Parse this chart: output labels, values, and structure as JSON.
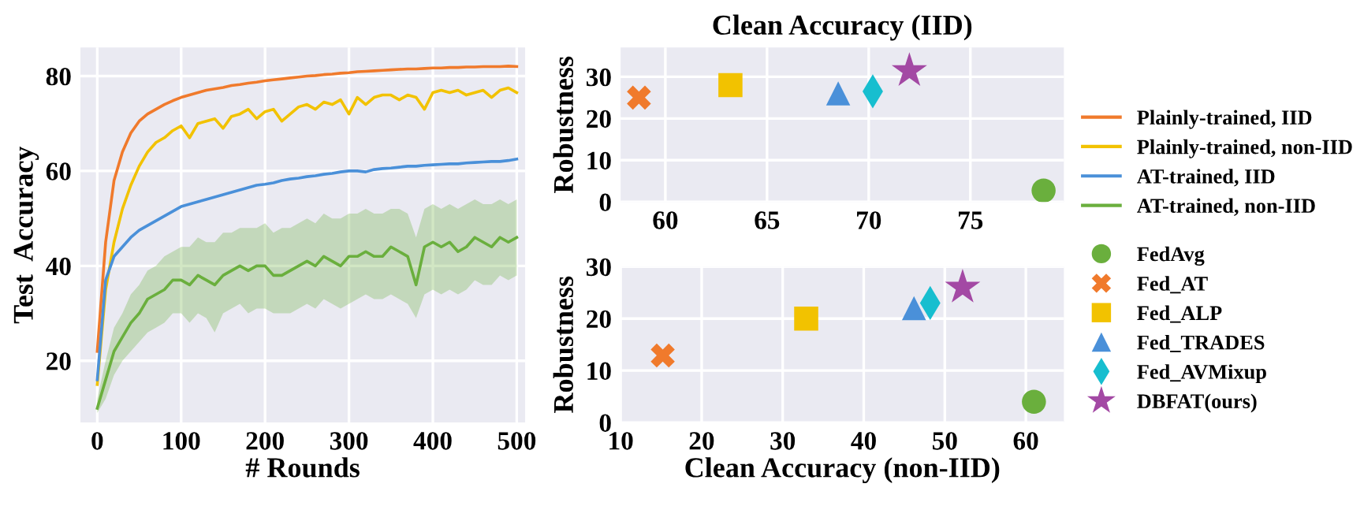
{
  "chart_data": [
    {
      "type": "line",
      "xlabel": "# Rounds",
      "ylabel": "Test  Accuracy",
      "xlim": [
        -20,
        510
      ],
      "ylim": [
        7,
        86
      ],
      "xticks": [
        0,
        100,
        200,
        300,
        400,
        500
      ],
      "yticks": [
        20,
        40,
        60,
        80
      ],
      "grid": true,
      "legend": "right",
      "x": [
        0,
        10,
        20,
        30,
        40,
        50,
        60,
        70,
        80,
        90,
        100,
        110,
        120,
        130,
        140,
        150,
        160,
        170,
        180,
        190,
        200,
        210,
        220,
        230,
        240,
        250,
        260,
        270,
        280,
        290,
        300,
        310,
        320,
        330,
        340,
        350,
        360,
        370,
        380,
        390,
        400,
        410,
        420,
        430,
        440,
        450,
        460,
        470,
        480,
        490,
        500
      ],
      "series": [
        {
          "name": "Plainly-trained, IID",
          "color": "#f07a2c",
          "values": [
            22,
            45,
            58,
            64,
            68,
            70.5,
            72,
            73,
            74,
            74.8,
            75.5,
            76,
            76.5,
            77,
            77.3,
            77.6,
            78,
            78.2,
            78.5,
            78.7,
            79,
            79.2,
            79.4,
            79.6,
            79.8,
            80,
            80.1,
            80.3,
            80.4,
            80.6,
            80.7,
            80.9,
            81,
            81.1,
            81.2,
            81.3,
            81.4,
            81.5,
            81.5,
            81.6,
            81.7,
            81.7,
            81.8,
            81.8,
            81.9,
            81.9,
            82,
            82,
            82,
            82.1,
            82
          ]
        },
        {
          "name": "Plainly-trained, non-IID",
          "color": "#f2c200",
          "values": [
            15,
            35,
            45,
            52,
            57,
            61,
            64,
            66,
            67,
            68.5,
            69.5,
            67,
            70,
            70.5,
            71,
            69,
            71.5,
            72,
            73,
            71,
            72.5,
            73,
            70.5,
            72,
            73.5,
            74,
            73,
            74.5,
            74,
            75,
            72,
            75.5,
            74,
            75.5,
            76,
            76,
            75,
            76,
            75.5,
            73,
            76.5,
            77,
            76.5,
            77,
            76,
            76.5,
            77,
            75.5,
            77,
            77.5,
            76.5
          ]
        },
        {
          "name": "AT-trained, IID",
          "color": "#4a90d9",
          "values": [
            16,
            37,
            42,
            44,
            46,
            47.5,
            48.5,
            49.5,
            50.5,
            51.5,
            52.5,
            53,
            53.5,
            54,
            54.5,
            55,
            55.5,
            56,
            56.5,
            57,
            57.2,
            57.5,
            58,
            58.3,
            58.5,
            58.8,
            59,
            59.3,
            59.5,
            59.8,
            60,
            60,
            59.8,
            60.3,
            60.5,
            60.6,
            60.8,
            61,
            61,
            61.2,
            61.3,
            61.4,
            61.5,
            61.5,
            61.7,
            61.8,
            61.9,
            62,
            62,
            62.2,
            62.5
          ]
        },
        {
          "name": "AT-trained, non-IID",
          "color": "#6aaf3d",
          "values": [
            10,
            16,
            22,
            25,
            28,
            30,
            33,
            34,
            35,
            37,
            37,
            36,
            38,
            37,
            36,
            38,
            39,
            40,
            39,
            40,
            40,
            38,
            38,
            39,
            40,
            41,
            40,
            42,
            41,
            40,
            42,
            42,
            43,
            42,
            42,
            44,
            43,
            42,
            36,
            44,
            45,
            44,
            45,
            43,
            44,
            46,
            45,
            44,
            46,
            45,
            46
          ],
          "lower": [
            9,
            12,
            17,
            20,
            22,
            24,
            26,
            27,
            28,
            30,
            30,
            28,
            30,
            29,
            26,
            30,
            31,
            32,
            30,
            31,
            31,
            30,
            30,
            30,
            31,
            32,
            31,
            33,
            32,
            31,
            32,
            33,
            34,
            33,
            33,
            34,
            33,
            32,
            29,
            34,
            35,
            34,
            35,
            34,
            35,
            37,
            36,
            36,
            38,
            37,
            38
          ],
          "upper": [
            12,
            20,
            27,
            30,
            34,
            36,
            39,
            40,
            42,
            43,
            44,
            44,
            46,
            45,
            45,
            47,
            47,
            48,
            48,
            48,
            49,
            47,
            48,
            48,
            49,
            50,
            49,
            51,
            50,
            50,
            51,
            51,
            52,
            51,
            51,
            52,
            52,
            51,
            46,
            52,
            53,
            52,
            53,
            52,
            53,
            54,
            53,
            53,
            54,
            53,
            54
          ]
        }
      ]
    },
    {
      "type": "scatter",
      "title": "Clean Accuracy (IID)",
      "ylabel": "Robustness",
      "xlim": [
        57.8,
        79.6
      ],
      "ylim": [
        0,
        37
      ],
      "xticks": [
        60,
        65,
        70,
        75
      ],
      "yticks": [
        0,
        10,
        20,
        30
      ],
      "grid": true,
      "series": [
        {
          "color": "#6aaf3d",
          "marker": "circle",
          "x": [
            78.6
          ],
          "values": [
            2.7
          ]
        },
        {
          "color": "#f07a2c",
          "marker": "cross",
          "x": [
            58.7
          ],
          "values": [
            25
          ]
        },
        {
          "color": "#f2c200",
          "marker": "square",
          "x": [
            63.2
          ],
          "values": [
            28
          ]
        },
        {
          "color": "#4a90d9",
          "marker": "triangle",
          "x": [
            68.5
          ],
          "values": [
            26
          ]
        },
        {
          "color": "#17becf",
          "marker": "diamond",
          "x": [
            70.2
          ],
          "values": [
            26.5
          ]
        },
        {
          "color": "#a349a4",
          "marker": "star",
          "x": [
            72.0
          ],
          "values": [
            31.4
          ]
        }
      ]
    },
    {
      "type": "scatter",
      "xlabel": "Clean Accuracy (non-IID)",
      "ylabel": "Robustness",
      "xlim": [
        10,
        64.7
      ],
      "ylim": [
        0,
        30
      ],
      "xticks": [
        10,
        20,
        30,
        40,
        50,
        60
      ],
      "yticks": [
        0,
        10,
        20,
        30
      ],
      "grid": true,
      "legend": "right",
      "series": [
        {
          "name": "FedAvg",
          "color": "#6aaf3d",
          "marker": "circle",
          "x": [
            61
          ],
          "values": [
            4
          ]
        },
        {
          "name": "Fed_AT",
          "color": "#f07a2c",
          "marker": "cross",
          "x": [
            15.2
          ],
          "values": [
            12.9
          ]
        },
        {
          "name": "Fed_ALP",
          "color": "#f2c200",
          "marker": "square",
          "x": [
            32.9
          ],
          "values": [
            20
          ]
        },
        {
          "name": "Fed_TRADES",
          "color": "#4a90d9",
          "marker": "triangle",
          "x": [
            46.2
          ],
          "values": [
            22
          ]
        },
        {
          "name": "Fed_AVMixup",
          "color": "#17becf",
          "marker": "diamond",
          "x": [
            48.2
          ],
          "values": [
            23
          ]
        },
        {
          "name": "DBFAT(ours)",
          "color": "#a349a4",
          "marker": "star",
          "x": [
            52.2
          ],
          "values": [
            26
          ]
        }
      ]
    }
  ]
}
